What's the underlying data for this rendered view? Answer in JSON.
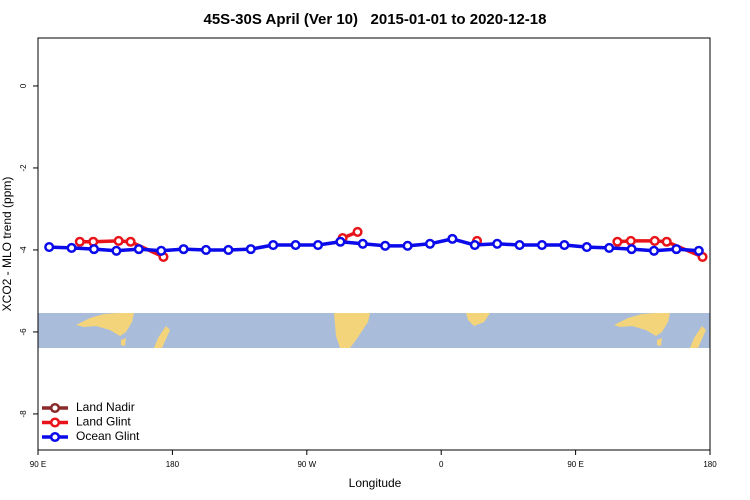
{
  "chart_data": {
    "type": "line",
    "title": "45S-30S April (Ver 10)   2015-01-01 to 2020-12-18",
    "x_label": "Longitude",
    "y_label": "XCO2 - MLO trend (ppm)",
    "xlim": [
      90,
      540
    ],
    "ylim": [
      -8.88,
      1.17
    ],
    "xticks": [
      {
        "value": 90,
        "label": "90 E"
      },
      180,
      {
        "value": 270,
        "label": "90 W"
      },
      {
        "value": 360,
        "label": "0"
      },
      {
        "value": 450,
        "label": "90 E"
      },
      {
        "value": 540,
        "label": "180"
      }
    ],
    "yticks": [
      0,
      -2,
      -4,
      -6,
      -8
    ],
    "legend": "bottom-left",
    "series": [
      {
        "name": "Land Nadir",
        "color": "#8b2a2a",
        "x": [],
        "values": []
      },
      {
        "name": "Land Glint",
        "color": "#e8141a",
        "x": [
          118,
          127,
          144,
          152,
          174,
          null,
          294,
          304,
          null,
          384,
          null,
          478,
          487,
          503,
          511,
          535
        ],
        "values": [
          -3.8,
          -3.8,
          -3.78,
          -3.8,
          -4.17,
          null,
          -3.71,
          -3.56,
          null,
          -3.78,
          null,
          -3.8,
          -3.78,
          -3.78,
          -3.8,
          -4.17
        ]
      },
      {
        "name": "Ocean Glint",
        "color": "#0a0aeb",
        "x": [
          97.5,
          112.5,
          127.5,
          142.5,
          157.5,
          172.5,
          187.5,
          202.5,
          217.5,
          232.5,
          247.5,
          262.5,
          277.5,
          292.5,
          307.5,
          322.5,
          337.5,
          352.5,
          367.5,
          382.5,
          397.5,
          412.5,
          427.5,
          442.5,
          457.5,
          472.5,
          487.5,
          502.5,
          517.5,
          532.5
        ],
        "values": [
          -3.93,
          -3.95,
          -3.98,
          -4.02,
          -3.98,
          -4.02,
          -3.98,
          -4.0,
          -4.0,
          -3.98,
          -3.88,
          -3.88,
          -3.88,
          -3.8,
          -3.85,
          -3.9,
          -3.9,
          -3.85,
          -3.73,
          -3.88,
          -3.85,
          -3.88,
          -3.88,
          -3.88,
          -3.93,
          -3.95,
          -3.98,
          -4.02,
          -3.98,
          -4.02
        ]
      }
    ]
  }
}
